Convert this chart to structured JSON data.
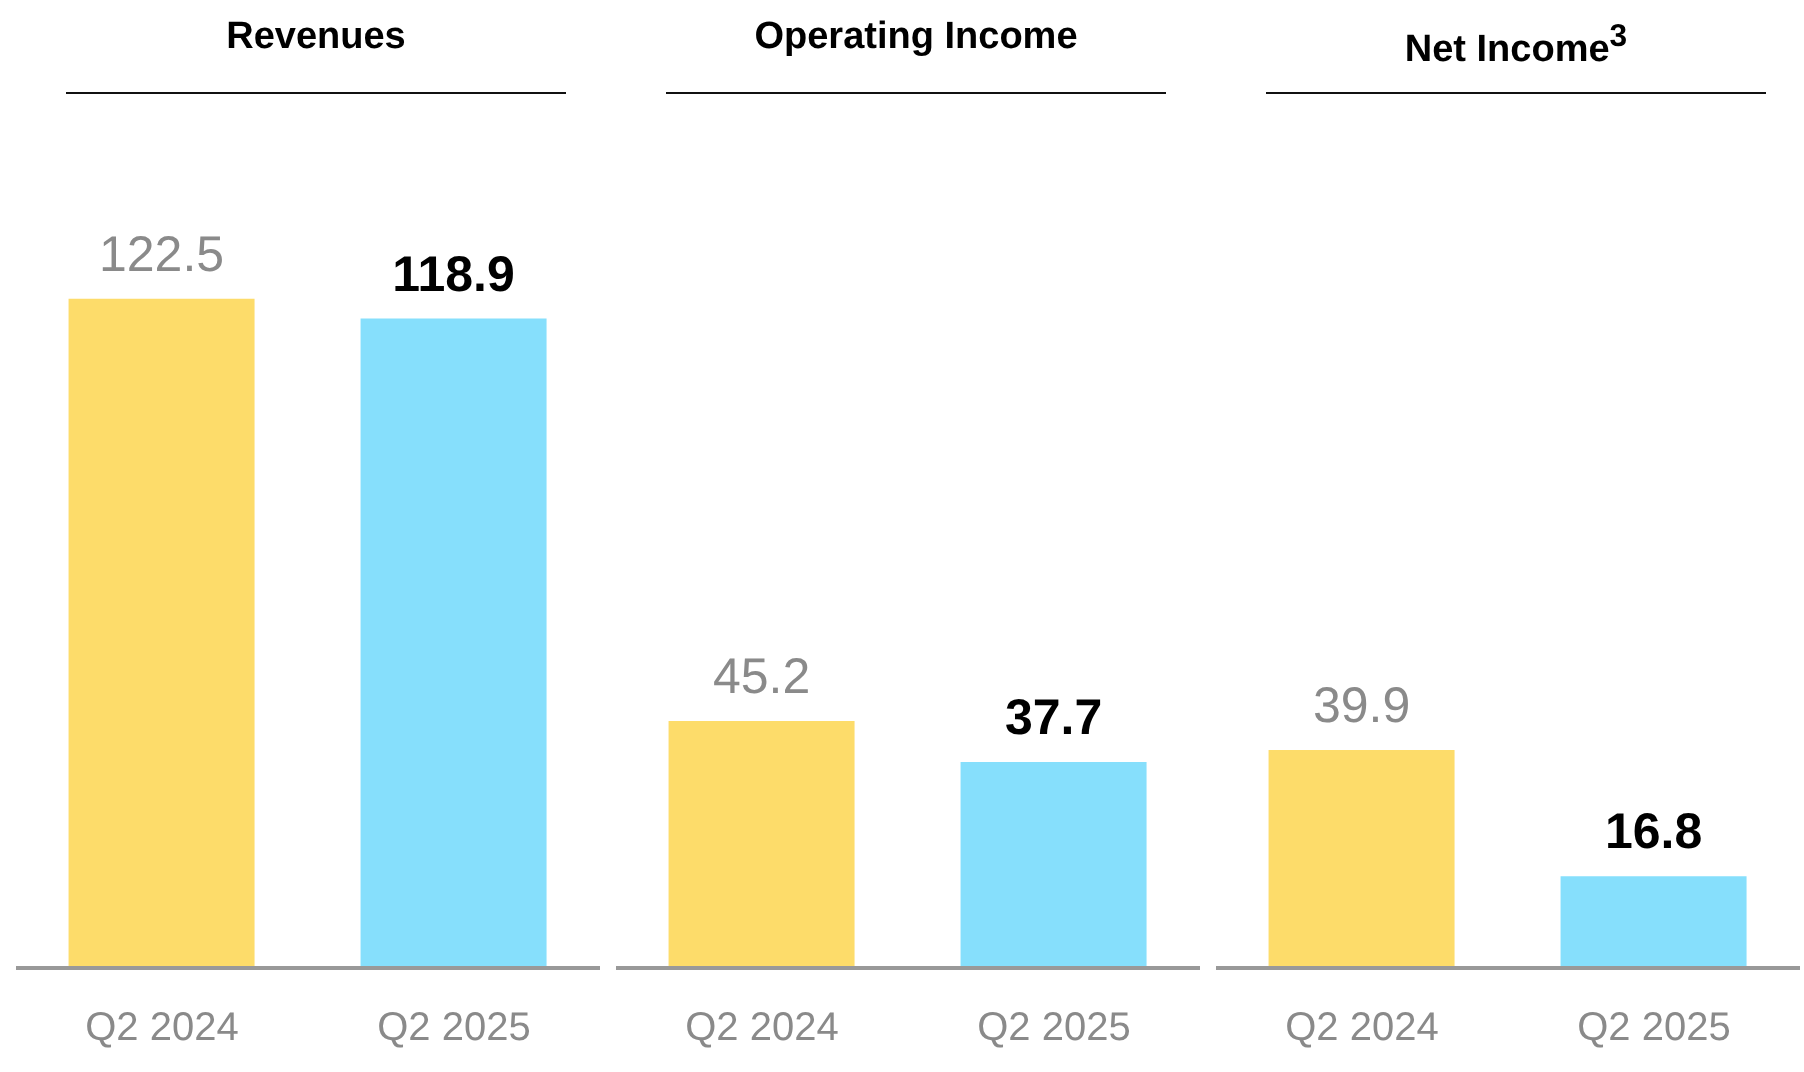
{
  "chart_data": [
    {
      "type": "bar",
      "title": "Revenues",
      "categories": [
        "Q2 2024",
        "Q2 2025"
      ],
      "values": [
        122.5,
        118.9
      ],
      "colors": [
        "#fddc6a",
        "#86dffc"
      ],
      "data_labels": true,
      "ylim": [
        0,
        160
      ],
      "tick_labels": "x"
    },
    {
      "type": "bar",
      "title": "Operating Income",
      "categories": [
        "Q2 2024",
        "Q2 2025"
      ],
      "values": [
        45.2,
        37.7
      ],
      "colors": [
        "#fddc6a",
        "#86dffc"
      ],
      "data_labels": true,
      "ylim": [
        0,
        160
      ],
      "tick_labels": "x"
    },
    {
      "type": "bar",
      "title": "Net Income$^{3}$",
      "categories": [
        "Q2 2024",
        "Q2 2025"
      ],
      "values": [
        39.9,
        16.8
      ],
      "colors": [
        "#fddc6a",
        "#86dffc"
      ],
      "data_labels": true,
      "ylim": [
        0,
        160
      ],
      "tick_labels": "x"
    }
  ]
}
